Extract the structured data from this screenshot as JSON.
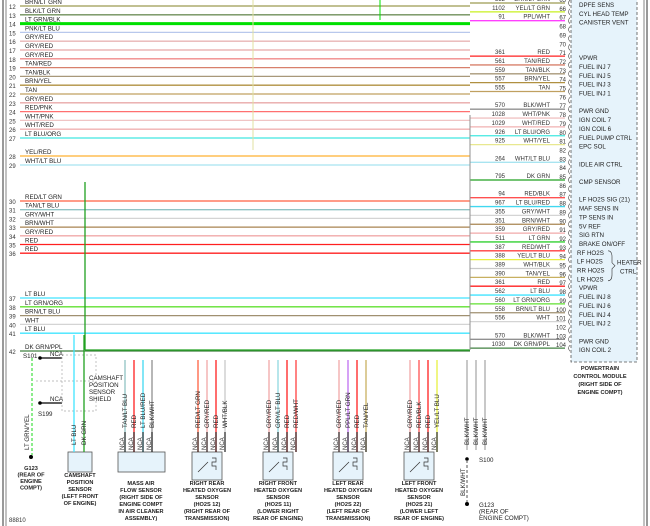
{
  "left_wires": [
    {
      "num": "12",
      "color_name": "BRN/LT GRN",
      "hex": "#9c9a50"
    },
    {
      "num": "13",
      "color_name": "BLK/LT GRN",
      "hex": "#6f8f5a"
    },
    {
      "num": "14",
      "color_name": "LT GRN/BLK",
      "hex": "#00e000"
    },
    {
      "num": "15",
      "color_name": "PNK/LT BLU",
      "hex": "#b8c8ec"
    },
    {
      "num": "16",
      "color_name": "GRY/RED",
      "hex": "#e8b4b4"
    },
    {
      "num": "17",
      "color_name": "GRY/RED",
      "hex": "#e8a8a8"
    },
    {
      "num": "18",
      "color_name": "GRY/RED",
      "hex": "#f08a8a"
    },
    {
      "num": "19",
      "color_name": "TAN/RED",
      "hex": "#d8806c"
    },
    {
      "num": "20",
      "color_name": "TAN/BLK",
      "hex": "#a8987a"
    },
    {
      "num": "21",
      "color_name": "BRN/YEL",
      "hex": "#b09040"
    },
    {
      "num": "22",
      "color_name": "TAN",
      "hex": "#c0a060"
    },
    {
      "num": "23",
      "color_name": "GRY/RED",
      "hex": "#e8a8a8"
    },
    {
      "num": "24",
      "color_name": "RED/PNK",
      "hex": "#ff7070"
    },
    {
      "num": "25",
      "color_name": "WHT/PNK",
      "hex": "#f0c4c4"
    },
    {
      "num": "26",
      "color_name": "WHT/RED",
      "hex": "#f0b0b0"
    },
    {
      "num": "27",
      "color_name": "LT BLU/ORG",
      "hex": "#40e8e0"
    },
    {
      "num": "28",
      "color_name": "YEL/RED",
      "hex": "#ffb030"
    },
    {
      "num": "29",
      "color_name": "WHT/LT BLU",
      "hex": "#a8e4f0"
    },
    {
      "num": "30",
      "color_name": "RED/LT GRN",
      "hex": "#ff6040"
    },
    {
      "num": "31",
      "color_name": "TAN/LT BLU",
      "hex": "#90c4c4"
    },
    {
      "num": "32",
      "color_name": "GRY/WHT",
      "hex": "#d4d4d4"
    },
    {
      "num": "33",
      "color_name": "BRN/WHT",
      "hex": "#a88450"
    },
    {
      "num": "34",
      "color_name": "GRY/RED",
      "hex": "#f0a8a8"
    },
    {
      "num": "35",
      "color_name": "RED",
      "hex": "#ff2020"
    },
    {
      "num": "36",
      "color_name": "RED",
      "hex": "#ff2020"
    },
    {
      "num": "37",
      "color_name": "LT BLU",
      "hex": "#40e4ff"
    },
    {
      "num": "38",
      "color_name": "LT GRN/ORG",
      "hex": "#60e030"
    },
    {
      "num": "39",
      "color_name": "BRN/LT BLU",
      "hex": "#a09070"
    },
    {
      "num": "40",
      "color_name": "WHT",
      "hex": "#d4d4d4"
    },
    {
      "num": "41",
      "color_name": "LT BLU",
      "hex": "#40e4ff"
    },
    {
      "num": "42",
      "color_name": "DK GRN/PPL",
      "hex": "#408040"
    }
  ],
  "pcm_pins": [
    {
      "pin": "65",
      "circuit": "352",
      "color_name": "BRN/LT GRN",
      "hex": "#9c9a50",
      "function": "DPFE SENS"
    },
    {
      "pin": "66",
      "circuit": "1102",
      "color_name": "YEL/LT GRN",
      "hex": "#c8f020",
      "function": "CYL HEAD TEMP"
    },
    {
      "pin": "67",
      "circuit": "91",
      "color_name": "PPL/WHT",
      "hex": "#ff40ff",
      "function": "CANISTER VENT"
    },
    {
      "pin": "68"
    },
    {
      "pin": "69"
    },
    {
      "pin": "70"
    },
    {
      "pin": "71",
      "circuit": "361",
      "color_name": "RED",
      "hex": "#ff2020",
      "function": "VPWR"
    },
    {
      "pin": "72",
      "circuit": "561",
      "color_name": "TAN/RED",
      "hex": "#d8806c",
      "function": "FUEL INJ 7"
    },
    {
      "pin": "73",
      "circuit": "559",
      "color_name": "TAN/BLK",
      "hex": "#a8987a",
      "function": "FUEL INJ 5"
    },
    {
      "pin": "74",
      "circuit": "557",
      "color_name": "BRN/YEL",
      "hex": "#b09040",
      "function": "FUEL INJ 3"
    },
    {
      "pin": "75",
      "circuit": "555",
      "color_name": "TAN",
      "hex": "#c0a060",
      "function": "FUEL INJ 1"
    },
    {
      "pin": "76"
    },
    {
      "pin": "77",
      "circuit": "570",
      "color_name": "BLK/WHT",
      "hex": "#909090",
      "function": "PWR GND"
    },
    {
      "pin": "78",
      "circuit": "1028",
      "color_name": "WHT/PNK",
      "hex": "#f0c4c4",
      "function": "IGN COIL 7"
    },
    {
      "pin": "79",
      "circuit": "1029",
      "color_name": "WHT/RED",
      "hex": "#f0b0b0",
      "function": "IGN COIL 6"
    },
    {
      "pin": "80",
      "circuit": "926",
      "color_name": "LT BLU/ORG",
      "hex": "#40e8e0",
      "function": "FUEL PUMP CTRL"
    },
    {
      "pin": "81",
      "circuit": "925",
      "color_name": "WHT/YEL",
      "hex": "#e8e890",
      "function": "EPC SOL"
    },
    {
      "pin": "82"
    },
    {
      "pin": "83",
      "circuit": "264",
      "color_name": "WHT/LT BLU",
      "hex": "#a8e4f0",
      "function": "IDLE AIR CTRL"
    },
    {
      "pin": "84"
    },
    {
      "pin": "85",
      "circuit": "795",
      "color_name": "DK GRN",
      "hex": "#20a020",
      "function": "CMP SENSOR"
    },
    {
      "pin": "86"
    },
    {
      "pin": "87",
      "circuit": "94",
      "color_name": "RED/BLK",
      "hex": "#ff5050",
      "function": "LF HO2S SIG (21)"
    },
    {
      "pin": "88",
      "circuit": "967",
      "color_name": "LT BLU/RED",
      "hex": "#40d8f0",
      "function": "MAF SENS IN"
    },
    {
      "pin": "89",
      "circuit": "355",
      "color_name": "GRY/WHT",
      "hex": "#d4d4d4",
      "function": "TP SENS IN"
    },
    {
      "pin": "90",
      "circuit": "351",
      "color_name": "BRN/WHT",
      "hex": "#a88450",
      "function": "5V REF"
    },
    {
      "pin": "91",
      "circuit": "359",
      "color_name": "GRY/RED",
      "hex": "#f0a8a8",
      "function": "SIG RTN"
    },
    {
      "pin": "92",
      "circuit": "511",
      "color_name": "LT GRN",
      "hex": "#30d030",
      "function": "BRAKE ON/OFF"
    },
    {
      "pin": "93",
      "circuit": "387",
      "color_name": "RED/WHT",
      "hex": "#ff4040",
      "function": "RF HO2S"
    },
    {
      "pin": "94",
      "circuit": "388",
      "color_name": "YEL/LT BLU",
      "hex": "#e8f040",
      "function": "LF HO2S"
    },
    {
      "pin": "95",
      "circuit": "389",
      "color_name": "WHT/BLK",
      "hex": "#c8c8c8",
      "function": "RR HO2S"
    },
    {
      "pin": "96",
      "circuit": "390",
      "color_name": "TAN/YEL",
      "hex": "#c8b060",
      "function": "LR HO2S"
    },
    {
      "pin": "97",
      "circuit": "361",
      "color_name": "RED",
      "hex": "#ff2020",
      "function": "VPWR"
    },
    {
      "pin": "98",
      "circuit": "562",
      "color_name": "LT BLU",
      "hex": "#40e4ff",
      "function": "FUEL INJ 8"
    },
    {
      "pin": "99",
      "circuit": "560",
      "color_name": "LT GRN/ORG",
      "hex": "#60e030",
      "function": "FUEL INJ 6"
    },
    {
      "pin": "100",
      "circuit": "558",
      "color_name": "BRN/LT BLU",
      "hex": "#a09070",
      "function": "FUEL INJ 4"
    },
    {
      "pin": "101",
      "circuit": "556",
      "color_name": "WHT",
      "hex": "#d4d4d4",
      "function": "FUEL INJ 2"
    },
    {
      "pin": "102"
    },
    {
      "pin": "103",
      "circuit": "570",
      "color_name": "BLK/WHT",
      "hex": "#909090",
      "function": "PWR GND"
    },
    {
      "pin": "104",
      "circuit": "1030",
      "color_name": "DK GRN/PPL",
      "hex": "#408040",
      "function": "IGN COIL 2"
    }
  ],
  "heater_ctrl_label": [
    "HEATER",
    "CTRL"
  ],
  "pcm_caption": [
    "POWERTRAIN",
    "CONTROL MODULE",
    "(RIGHT SIDE OF",
    "ENGINE COMPT)"
  ],
  "splices": {
    "s101": "S101",
    "s199": "S199",
    "s100": "S100",
    "nca": "NCA",
    "shield": [
      "CAMSHAFT",
      "POSITION",
      "SENSOR",
      "SHIELD"
    ]
  },
  "grounds": [
    {
      "id": "G123",
      "caption": [
        "G123",
        "(REAR OF",
        "ENGINE",
        "COMPT)"
      ],
      "wire": "LT GRN/YEL"
    },
    {
      "id": "G123",
      "caption": [
        "G123",
        "(REAR OF",
        "ENGINE COMPT)"
      ],
      "wire": "BLK/WHT"
    }
  ],
  "s100_wires": [
    "BLK/WHT",
    "BLK/WHT",
    "BLK/WHT"
  ],
  "sensors": [
    {
      "caption": [
        "CAMSHAFT",
        "POSITION",
        "SENSOR",
        "(LEFT FRONT",
        "OF ENGINE)"
      ],
      "wires": [
        {
          "name": "LT BLU",
          "hex": "#40e4ff"
        },
        {
          "name": "DK GRN",
          "hex": "#20a020"
        }
      ],
      "pins": []
    },
    {
      "caption": [
        "MASS AIR",
        "FLOW SENSOR",
        "(RIGHT SIDE OF",
        "ENGINE COMPT",
        "IN AIR CLEANER",
        "ASSEMBLY)"
      ],
      "wires": [
        {
          "name": "TAN/LT BLU",
          "hex": "#90c4c4"
        },
        {
          "name": "RED",
          "hex": "#ff2020"
        },
        {
          "name": "LT BLU/RED",
          "hex": "#40d8f0"
        },
        {
          "name": "BLK/WHT",
          "hex": "#909090"
        }
      ],
      "pins": [
        "NCA",
        "NCA",
        "NCA",
        "NCA"
      ]
    },
    {
      "caption": [
        "RIGHT REAR",
        "HEATED OXYGEN",
        "SENSOR",
        "(HO2S 12)",
        "(RIGHT REAR OF",
        "TRANSMISSION)"
      ],
      "wires": [
        {
          "name": "RED/LT GRN",
          "hex": "#ff6040"
        },
        {
          "name": "GRY/RED",
          "hex": "#f0a8a8"
        },
        {
          "name": "RED",
          "hex": "#ff2020"
        },
        {
          "name": "WHT/BLK",
          "hex": "#c8c8c8"
        }
      ],
      "pins": [
        "NCA",
        "NCA",
        "NCA",
        "NCA"
      ]
    },
    {
      "caption": [
        "RIGHT FRONT",
        "HEATED OXYGEN",
        "SENSOR",
        "(HO2S 11)",
        "(LOWER RIGHT",
        "REAR OF ENGINE)"
      ],
      "wires": [
        {
          "name": "GRY/RED",
          "hex": "#f0a8a8"
        },
        {
          "name": "GRY/LT BLU",
          "hex": "#90d8e0"
        },
        {
          "name": "RED",
          "hex": "#ff2020"
        },
        {
          "name": "RED/WHT",
          "hex": "#ff4040"
        }
      ],
      "pins": [
        "NCA",
        "NCA",
        "NCA",
        "NCA"
      ]
    },
    {
      "caption": [
        "LEFT REAR",
        "HEATED OXYGEN",
        "SENSOR",
        "(HO2S 22)",
        "(LEFT REAR OF",
        "TRANSMISSION)"
      ],
      "wires": [
        {
          "name": "GRY/RED",
          "hex": "#f0a8a8"
        },
        {
          "name": "PPL/LT GRN",
          "hex": "#c070f0"
        },
        {
          "name": "RED",
          "hex": "#ff2020"
        },
        {
          "name": "TAN/YEL",
          "hex": "#c8b060"
        }
      ],
      "pins": [
        "NCA",
        "NCA",
        "NCA",
        "NCA"
      ]
    },
    {
      "caption": [
        "LEFT FRONT",
        "HEATED OXYGEN",
        "SENSOR",
        "(HO2S 21)",
        "(LOWER LEFT",
        "REAR OF ENGINE)"
      ],
      "wires": [
        {
          "name": "GRY/RED",
          "hex": "#f0a8a8"
        },
        {
          "name": "RED/BLK",
          "hex": "#ff5050"
        },
        {
          "name": "RED",
          "hex": "#ff2020"
        },
        {
          "name": "YEL/LT BLU",
          "hex": "#e8f040"
        }
      ],
      "pins": [
        "NCA",
        "NCA",
        "NCA",
        "NCA"
      ]
    }
  ],
  "figure_id": "88810"
}
